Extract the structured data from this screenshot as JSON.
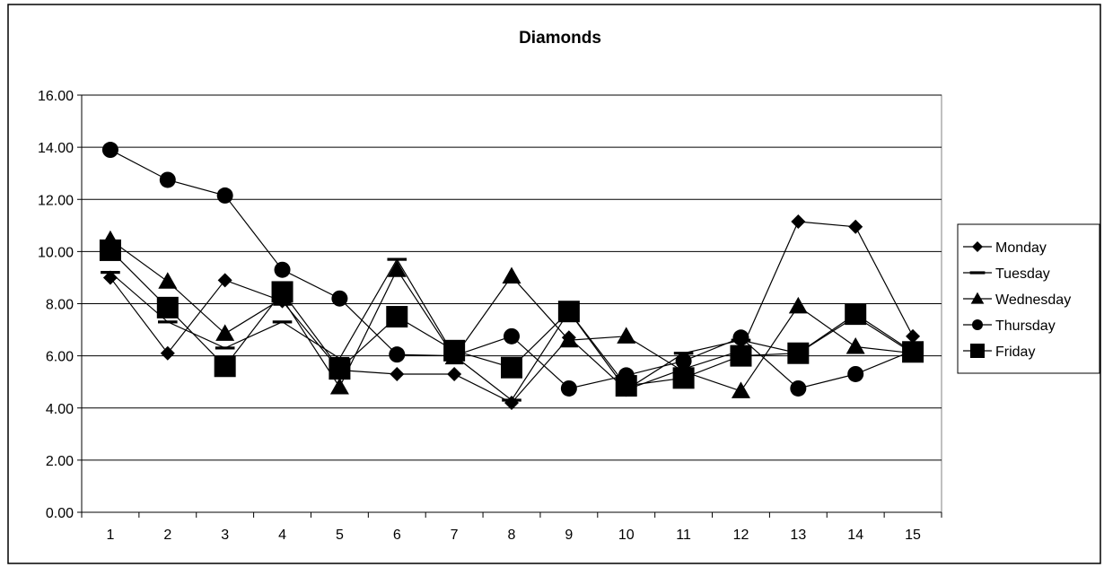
{
  "chart_data": {
    "type": "line",
    "title": "Diamonds",
    "xlabel": "",
    "ylabel": "",
    "x": [
      1,
      2,
      3,
      4,
      5,
      6,
      7,
      8,
      9,
      10,
      11,
      12,
      13,
      14,
      15
    ],
    "x_tick_labels": [
      "1",
      "2",
      "3",
      "4",
      "5",
      "6",
      "7",
      "8",
      "9",
      "10",
      "11",
      "12",
      "13",
      "14",
      "15"
    ],
    "ylim": [
      0,
      16
    ],
    "y_ticks": [
      0,
      2,
      4,
      6,
      8,
      10,
      12,
      14,
      16
    ],
    "y_tick_labels": [
      "0.00",
      "2.00",
      "4.00",
      "6.00",
      "8.00",
      "10.00",
      "12.00",
      "14.00",
      "16.00"
    ],
    "grid": "horizontal",
    "legend": "right",
    "series": [
      {
        "name": "Monday",
        "marker": "diamond",
        "values": [
          9.0,
          6.1,
          8.9,
          8.1,
          5.45,
          5.3,
          5.3,
          4.2,
          6.7,
          4.7,
          5.5,
          6.2,
          11.15,
          10.95,
          6.75
        ]
      },
      {
        "name": "Tuesday",
        "marker": "dash",
        "values": [
          9.2,
          7.3,
          6.3,
          7.3,
          5.9,
          9.7,
          6.0,
          4.3,
          7.7,
          4.7,
          6.1,
          6.6,
          6.1,
          7.5,
          6.1
        ]
      },
      {
        "name": "Wednesday",
        "marker": "triangle",
        "values": [
          10.45,
          8.85,
          6.85,
          8.2,
          4.8,
          9.3,
          5.95,
          9.05,
          6.6,
          6.75,
          5.4,
          4.65,
          7.9,
          6.35,
          6.1
        ]
      },
      {
        "name": "Thursday",
        "marker": "circle",
        "values": [
          13.9,
          12.75,
          12.15,
          9.3,
          8.2,
          6.05,
          6.0,
          6.75,
          4.75,
          5.25,
          5.8,
          6.7,
          4.75,
          5.3,
          6.2
        ]
      },
      {
        "name": "Friday",
        "marker": "square",
        "values": [
          10.05,
          7.85,
          5.6,
          8.45,
          5.5,
          7.5,
          6.2,
          5.55,
          7.7,
          4.85,
          5.15,
          6.0,
          6.1,
          7.6,
          6.15
        ]
      }
    ]
  }
}
